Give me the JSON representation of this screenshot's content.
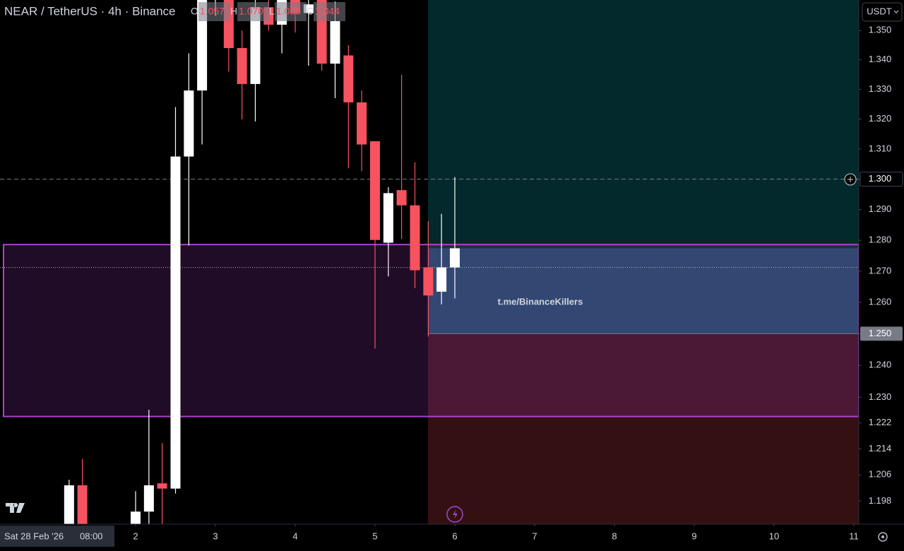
{
  "chart_data": {
    "type": "candlestick",
    "title": "NEAR / TetherUS · 4h · Binance",
    "ohlc_legend": [
      {
        "label": "O",
        "value": "1.057"
      },
      {
        "label": "H",
        "value": "1.070"
      },
      {
        "label": "L",
        "value": "1.038"
      },
      {
        "label": "C",
        "value": "1.044"
      }
    ],
    "currency": "USDT",
    "annotation": "t.me/BinanceKillers",
    "crosshair_time": [
      "Sat 28 Feb '26",
      "08:00"
    ],
    "log_scale": true,
    "up_color": "#ffffff",
    "down_color": "#f7525f",
    "xlim": [
      0.301,
      11.062
    ],
    "xticks": [
      2,
      3,
      4,
      5,
      6,
      7,
      8,
      9,
      10,
      11
    ],
    "ylim": [
      1.191,
      1.3605
    ],
    "yticks": [
      {
        "value": 1.35,
        "label": "1.350"
      },
      {
        "value": 1.34,
        "label": "1.340"
      },
      {
        "value": 1.33,
        "label": "1.330"
      },
      {
        "value": 1.32,
        "label": "1.320"
      },
      {
        "value": 1.31,
        "label": "1.310"
      },
      {
        "value": 1.3,
        "label": "1.300"
      },
      {
        "value": 1.29,
        "label": "1.290"
      },
      {
        "value": 1.28,
        "label": "1.280"
      },
      {
        "value": 1.27,
        "label": "1.270"
      },
      {
        "value": 1.26,
        "label": "1.260"
      },
      {
        "value": 1.25,
        "label": "1.250"
      },
      {
        "value": 1.24,
        "label": "1.240"
      },
      {
        "value": 1.23,
        "label": "1.230"
      },
      1.222,
      1.214,
      1.206,
      1.198
    ],
    "crosshair_price": 1.3,
    "entry_price": 1.25,
    "last_price": 1.2712,
    "zones": [
      {
        "top": 1.3605,
        "bottom": 1.2774,
        "x_start": 5.664,
        "color": "#03292c"
      },
      {
        "top": 1.2774,
        "bottom": 1.25,
        "x_start": 5.664,
        "color": "#164a5e"
      },
      {
        "top": 1.25,
        "bottom": 1.191,
        "x_start": 5.664,
        "color": "#351013"
      },
      {
        "top": 1.2786,
        "bottom": 1.224,
        "x_start": 0.345,
        "color": "#b040d0"
      }
    ],
    "x": [
      1.167,
      1.333,
      2.0,
      2.167,
      2.333,
      2.5,
      2.667,
      2.833,
      3.0,
      3.167,
      3.333,
      3.5,
      3.667,
      3.833,
      4.0,
      4.167,
      4.333,
      4.5,
      4.667,
      4.833,
      5.0,
      5.167,
      5.333,
      5.5,
      5.667,
      5.833,
      6.0
    ],
    "open": [
      1.188,
      1.2028,
      1.188,
      1.1948,
      1.2034,
      1.2018,
      1.3075,
      1.3296,
      1.365,
      1.362,
      1.344,
      1.3318,
      1.358,
      1.352,
      1.362,
      1.356,
      1.3605,
      1.3387,
      1.3415,
      1.3256,
      1.3126,
      1.2792,
      1.2964,
      1.2914,
      1.2712,
      1.2634,
      1.2712
    ],
    "high": [
      1.2045,
      1.2109,
      1.201,
      1.2261,
      1.2158,
      1.324,
      1.3422,
      1.37,
      1.372,
      1.368,
      1.35,
      1.362,
      1.365,
      1.362,
      1.366,
      1.365,
      1.366,
      1.36,
      1.345,
      1.3296,
      1.3126,
      1.2974,
      1.3349,
      1.3056,
      1.2862,
      1.2886,
      1.3007
    ],
    "low": [
      1.186,
      1.186,
      1.186,
      1.188,
      1.188,
      1.2003,
      1.2783,
      1.3115,
      1.355,
      1.336,
      1.3199,
      1.3192,
      1.35,
      1.3422,
      1.3493,
      1.338,
      1.3363,
      1.327,
      1.3036,
      1.3026,
      1.2453,
      1.2683,
      1.2804,
      1.2645,
      1.2491,
      1.2593,
      1.2613
    ],
    "close": [
      1.2028,
      1.188,
      1.1948,
      1.2028,
      1.2018,
      1.3075,
      1.3296,
      1.365,
      1.368,
      1.344,
      1.3318,
      1.358,
      1.352,
      1.3605,
      1.356,
      1.359,
      1.3387,
      1.3532,
      1.3256,
      1.3115,
      1.2801,
      1.2954,
      1.2914,
      1.2703,
      1.2622,
      1.2712,
      1.2774
    ]
  }
}
